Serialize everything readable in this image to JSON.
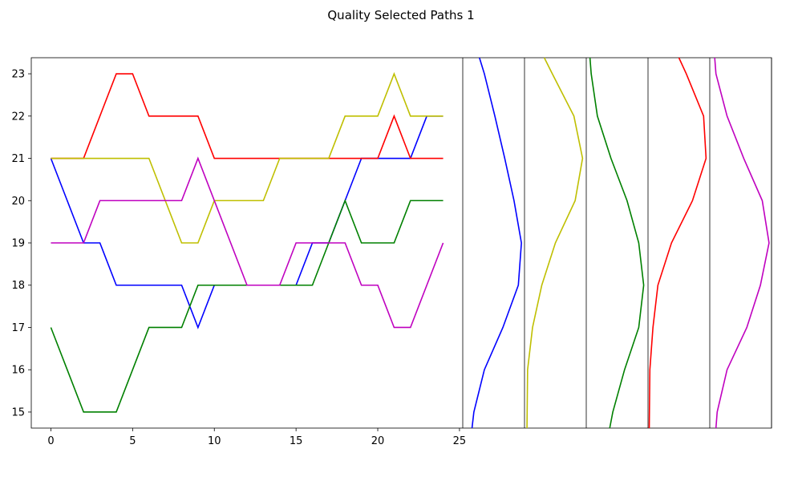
{
  "chart_data": {
    "type": "line",
    "title": "Quality Selected Paths 1",
    "xlabel": "",
    "ylabel": "",
    "xlim": [
      -1.2,
      25.2
    ],
    "ylim": [
      14.62,
      23.38
    ],
    "xticks": [
      0,
      5,
      10,
      15,
      20,
      25
    ],
    "yticks": [
      15,
      16,
      17,
      18,
      19,
      20,
      21,
      22,
      23
    ],
    "x": [
      0,
      1,
      2,
      3,
      4,
      5,
      6,
      7,
      8,
      9,
      10,
      11,
      12,
      13,
      14,
      15,
      16,
      17,
      18,
      19,
      20,
      21,
      22,
      23,
      24
    ],
    "series": [
      {
        "color": "#0000ff",
        "values": [
          21,
          20,
          19,
          19,
          18,
          18,
          18,
          18,
          18,
          17,
          18,
          18,
          18,
          18,
          18,
          18,
          19,
          19,
          20,
          21,
          21,
          21,
          21,
          22,
          22
        ]
      },
      {
        "color": "#008000",
        "values": [
          17,
          16,
          15,
          15,
          15,
          16,
          17,
          17,
          17,
          18,
          18,
          18,
          18,
          18,
          18,
          18,
          18,
          19,
          20,
          19,
          19,
          19,
          20,
          20,
          20
        ]
      },
      {
        "color": "#ff0000",
        "values": [
          21,
          21,
          21,
          22,
          23,
          23,
          22,
          22,
          22,
          22,
          21,
          21,
          21,
          21,
          21,
          21,
          21,
          21,
          21,
          21,
          21,
          22,
          21,
          21,
          21
        ]
      },
      {
        "color": "#bfbf00",
        "values": [
          21,
          21,
          21,
          21,
          21,
          21,
          21,
          20,
          19,
          19,
          20,
          20,
          20,
          20,
          21,
          21,
          21,
          21,
          22,
          22,
          22,
          23,
          22,
          22,
          22
        ]
      },
      {
        "color": "#bf00bf",
        "values": [
          19,
          19,
          19,
          20,
          20,
          20,
          20,
          20,
          20,
          21,
          20,
          19,
          18,
          18,
          18,
          19,
          19,
          19,
          19,
          18,
          18,
          17,
          17,
          18,
          19
        ]
      }
    ],
    "density_panels": [
      {
        "color": "#0000ff",
        "y": [
          14.62,
          15,
          16,
          17,
          18,
          19,
          20,
          21,
          22,
          23,
          23.38
        ],
        "density": [
          0.15,
          0.18,
          0.35,
          0.65,
          0.9,
          0.95,
          0.83,
          0.68,
          0.52,
          0.35,
          0.27
        ]
      },
      {
        "color": "#bfbf00",
        "y": [
          14.62,
          16,
          17,
          18,
          19,
          20,
          21,
          22,
          23,
          23.38
        ],
        "density": [
          0.04,
          0.05,
          0.13,
          0.28,
          0.5,
          0.82,
          0.94,
          0.8,
          0.45,
          0.32
        ]
      },
      {
        "color": "#008000",
        "y": [
          14.62,
          15,
          16,
          17,
          18,
          19,
          20,
          21,
          22,
          23,
          23.38
        ],
        "density": [
          0.38,
          0.43,
          0.62,
          0.85,
          0.93,
          0.85,
          0.66,
          0.4,
          0.18,
          0.08,
          0.06
        ]
      },
      {
        "color": "#ff0000",
        "y": [
          14.62,
          16,
          17,
          18,
          19,
          20,
          21,
          22,
          23,
          23.38
        ],
        "density": [
          0.02,
          0.03,
          0.08,
          0.16,
          0.38,
          0.72,
          0.94,
          0.9,
          0.62,
          0.5
        ]
      },
      {
        "color": "#bf00bf",
        "y": [
          14.62,
          15,
          16,
          17,
          18,
          19,
          20,
          21,
          22,
          23,
          23.38
        ],
        "density": [
          0.1,
          0.12,
          0.28,
          0.6,
          0.82,
          0.96,
          0.85,
          0.55,
          0.28,
          0.1,
          0.08
        ]
      }
    ]
  }
}
